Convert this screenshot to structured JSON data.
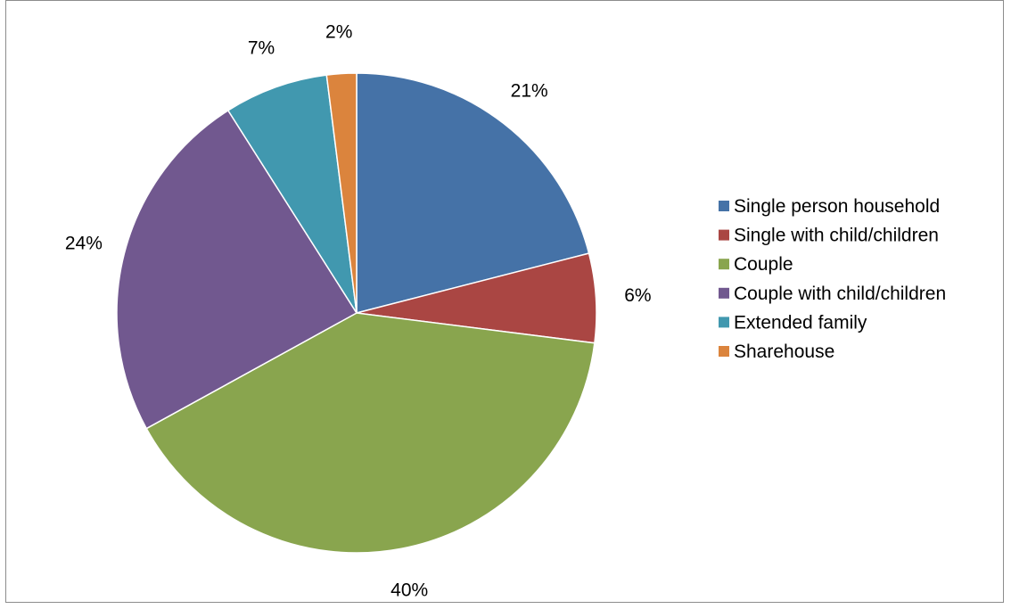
{
  "chart_data": {
    "type": "pie",
    "title": "",
    "legend_position": "right",
    "slices": [
      {
        "label": "Single person household",
        "value": 21,
        "display": "21%",
        "color": "#4572A7"
      },
      {
        "label": "Single with child/children",
        "value": 6,
        "display": "6%",
        "color": "#AA4643"
      },
      {
        "label": "Couple",
        "value": 40,
        "display": "40%",
        "color": "#89A54E"
      },
      {
        "label": "Couple with child/children",
        "value": 24,
        "display": "24%",
        "color": "#71588F"
      },
      {
        "label": "Extended family",
        "value": 7,
        "display": "7%",
        "color": "#4198AF"
      },
      {
        "label": "Sharehouse",
        "value": 2,
        "display": "2%",
        "color": "#DB843D"
      }
    ]
  }
}
